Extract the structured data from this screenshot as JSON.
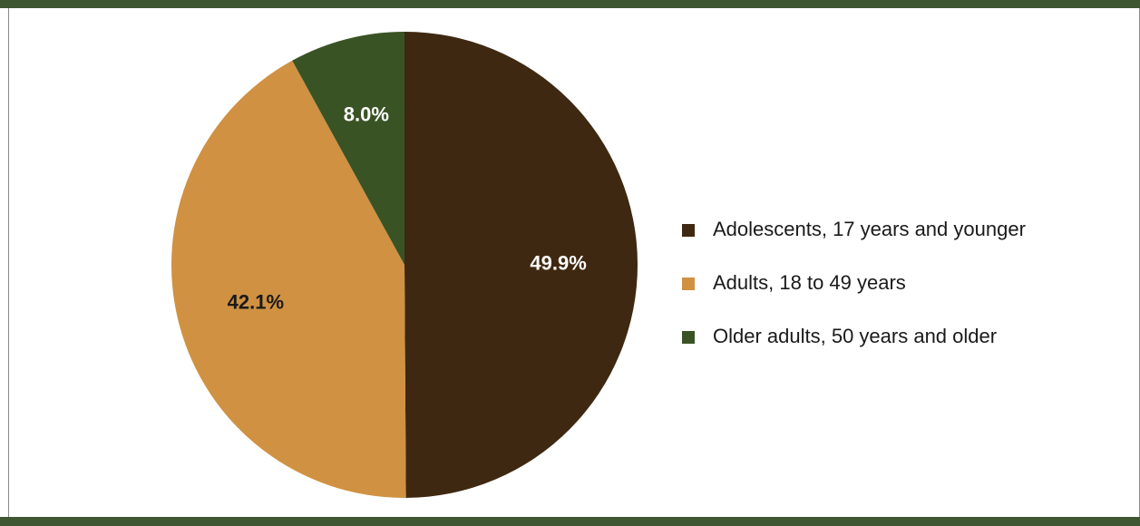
{
  "colors": {
    "band": "#3e5732",
    "label_light": "#ffffff",
    "label_dark": "#1a1a1a"
  },
  "chart_data": {
    "type": "pie",
    "title": "",
    "start_angle_deg": 0,
    "direction": "clockwise",
    "legend_position": "right",
    "slices": [
      {
        "label": "Adolescents, 17 years and younger",
        "value": 49.9,
        "display": "49.9%",
        "color": "#3f2811",
        "label_color": "#ffffff"
      },
      {
        "label": "Adults, 18 to 49 years",
        "value": 42.1,
        "display": "42.1%",
        "color": "#d09142",
        "label_color": "#1a1a1a"
      },
      {
        "label": "Older adults, 50 years and older",
        "value": 8.0,
        "display": "8.0%",
        "color": "#3a5325",
        "label_color": "#ffffff"
      }
    ]
  }
}
